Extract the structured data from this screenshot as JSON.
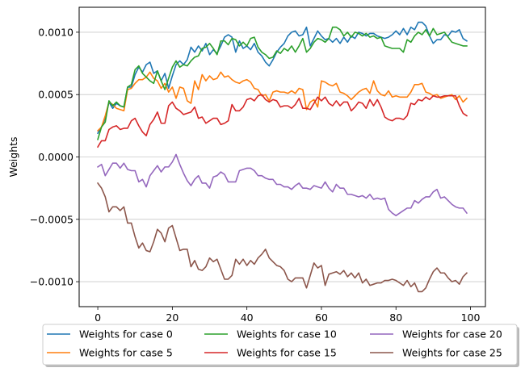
{
  "chart_data": {
    "type": "line",
    "title": "",
    "xlabel": "",
    "ylabel": "Weights",
    "xlim": [
      -5,
      104
    ],
    "ylim": [
      -0.0012,
      0.0012
    ],
    "xticks": [
      0,
      20,
      40,
      60,
      80,
      100
    ],
    "xtick_labels": [
      "0",
      "20",
      "40",
      "60",
      "80",
      "100"
    ],
    "yticks": [
      -0.001,
      -0.0005,
      0.0,
      0.0005,
      0.001
    ],
    "ytick_labels": [
      "−0.0010",
      "−0.0005",
      "0.0000",
      "0.0005",
      "0.0010"
    ],
    "grid": "horizontal",
    "legend_position": "bottom-center",
    "x": [
      0,
      1,
      2,
      3,
      4,
      5,
      6,
      7,
      8,
      9,
      10,
      11,
      12,
      13,
      14,
      15,
      16,
      17,
      18,
      19,
      20,
      21,
      22,
      23,
      24,
      25,
      26,
      27,
      28,
      29,
      30,
      31,
      32,
      33,
      34,
      35,
      36,
      37,
      38,
      39,
      40,
      41,
      42,
      43,
      44,
      45,
      46,
      47,
      48,
      49,
      50,
      51,
      52,
      53,
      54,
      55,
      56,
      57,
      58,
      59,
      60,
      61,
      62,
      63,
      64,
      65,
      66,
      67,
      68,
      69,
      70,
      71,
      72,
      73,
      74,
      75,
      76,
      77,
      78,
      79,
      80,
      81,
      82,
      83,
      84,
      85,
      86,
      87,
      88,
      89,
      90,
      91,
      92,
      93,
      94,
      95,
      96,
      97,
      98,
      99
    ],
    "series": [
      {
        "name": "Weights for case 0",
        "color": "#1f77b4",
        "values": [
          0.00019,
          0.00024,
          0.00031,
          0.00044,
          0.00039,
          0.00043,
          0.00041,
          0.0004,
          0.00056,
          0.00056,
          0.00066,
          0.00072,
          0.00068,
          0.00074,
          0.00076,
          0.00067,
          0.00069,
          0.00061,
          0.00067,
          0.00055,
          0.00065,
          0.00074,
          0.00077,
          0.00074,
          0.00078,
          0.00088,
          0.00084,
          0.00089,
          0.00085,
          0.00091,
          0.00082,
          0.00086,
          0.00083,
          0.00089,
          0.00096,
          0.00098,
          0.00096,
          0.00084,
          0.00093,
          0.00087,
          0.00089,
          0.00086,
          0.00091,
          0.00084,
          0.00081,
          0.00076,
          0.00073,
          0.00078,
          0.00084,
          0.00088,
          0.00091,
          0.00097,
          0.001,
          0.00101,
          0.00097,
          0.00098,
          0.00104,
          0.00089,
          0.00095,
          0.00101,
          0.00097,
          0.00094,
          0.00095,
          0.00092,
          0.00095,
          0.00091,
          0.00096,
          0.00092,
          0.00097,
          0.00095,
          0.001,
          0.00099,
          0.00097,
          0.00099,
          0.00099,
          0.00097,
          0.00096,
          0.00095,
          0.00096,
          0.00098,
          0.00101,
          0.00098,
          0.00103,
          0.00098,
          0.00104,
          0.00102,
          0.00108,
          0.00108,
          0.00105,
          0.00097,
          0.00091,
          0.00094,
          0.00094,
          0.00098,
          0.00097,
          0.00101,
          0.001,
          0.00102,
          0.00095,
          0.00093
        ]
      },
      {
        "name": "Weights for case 5",
        "color": "#ff7f0e",
        "values": [
          0.00021,
          0.00024,
          0.00033,
          0.00044,
          0.00042,
          0.00039,
          0.00038,
          0.00037,
          0.00054,
          0.00055,
          0.00059,
          0.00062,
          0.00062,
          0.00064,
          0.00068,
          0.00063,
          0.00061,
          0.00055,
          0.00059,
          0.00052,
          0.00056,
          0.00047,
          0.00056,
          0.00055,
          0.00045,
          0.00043,
          0.00061,
          0.00054,
          0.00066,
          0.00061,
          0.00065,
          0.00062,
          0.00063,
          0.00068,
          0.00064,
          0.00065,
          0.00062,
          0.0006,
          0.00059,
          0.00061,
          0.00062,
          0.0006,
          0.00055,
          0.00054,
          0.00049,
          0.0005,
          0.00045,
          0.00052,
          0.00053,
          0.00052,
          0.00052,
          0.00051,
          0.00053,
          0.00051,
          0.00055,
          0.00054,
          0.00038,
          0.00044,
          0.00046,
          0.0004,
          0.00061,
          0.0006,
          0.00058,
          0.00057,
          0.00059,
          0.00052,
          0.00051,
          0.00049,
          0.00046,
          0.00049,
          0.00052,
          0.00054,
          0.00055,
          0.00051,
          0.00061,
          0.00053,
          0.0005,
          0.00049,
          0.00053,
          0.00048,
          0.00049,
          0.00048,
          0.00048,
          0.00048,
          0.00052,
          0.00058,
          0.00058,
          0.00059,
          0.00052,
          0.00051,
          0.00049,
          0.0005,
          0.00047,
          0.00048,
          0.00049,
          0.0005,
          0.00046,
          0.00049,
          0.00044,
          0.00047
        ]
      },
      {
        "name": "Weights for case 10",
        "color": "#2ca02c",
        "values": [
          0.00014,
          0.00024,
          0.00028,
          0.00045,
          0.00041,
          0.00044,
          0.00041,
          0.0004,
          0.00056,
          0.00058,
          0.0007,
          0.00073,
          0.00067,
          0.00064,
          0.00061,
          0.00059,
          0.00069,
          0.00061,
          0.00054,
          0.00063,
          0.00072,
          0.00077,
          0.00072,
          0.00074,
          0.00073,
          0.00077,
          0.0008,
          0.00081,
          0.00087,
          0.00088,
          0.00091,
          0.00087,
          0.00082,
          0.00093,
          0.00093,
          0.0009,
          0.00095,
          0.00094,
          0.00089,
          0.00092,
          0.00089,
          0.00095,
          0.00096,
          0.00088,
          0.00084,
          0.00082,
          0.00079,
          0.0008,
          0.00085,
          0.00083,
          0.00087,
          0.00085,
          0.00089,
          0.00084,
          0.00089,
          0.00095,
          0.00084,
          0.00087,
          0.00092,
          0.00095,
          0.00094,
          0.00092,
          0.00095,
          0.00104,
          0.00104,
          0.00102,
          0.00097,
          0.001,
          0.00096,
          0.001,
          0.00099,
          0.00097,
          0.00099,
          0.00096,
          0.00097,
          0.00095,
          0.00096,
          0.00089,
          0.00088,
          0.00087,
          0.00087,
          0.00087,
          0.00084,
          0.00094,
          0.00092,
          0.00097,
          0.001,
          0.00098,
          0.00102,
          0.00097,
          0.00103,
          0.00098,
          0.00099,
          0.001,
          0.00096,
          0.00092,
          0.00091,
          0.0009,
          0.00089,
          0.00089
        ]
      },
      {
        "name": "Weights for case 15",
        "color": "#d62728",
        "values": [
          8e-05,
          0.00013,
          0.00013,
          0.00022,
          0.00024,
          0.00025,
          0.00022,
          0.00023,
          0.00023,
          0.00029,
          0.00031,
          0.00025,
          0.0002,
          0.00017,
          0.00026,
          0.0003,
          0.00036,
          0.00027,
          0.00027,
          0.00041,
          0.00044,
          0.00039,
          0.00037,
          0.00034,
          0.00035,
          0.00036,
          0.0004,
          0.00031,
          0.00032,
          0.00027,
          0.00029,
          0.00031,
          0.00031,
          0.00026,
          0.00027,
          0.00029,
          0.00042,
          0.00037,
          0.00037,
          0.0004,
          0.00046,
          0.00047,
          0.00045,
          0.00049,
          0.0005,
          0.00046,
          0.00044,
          0.00046,
          0.00045,
          0.0004,
          0.00041,
          0.00041,
          0.00039,
          0.00042,
          0.00047,
          0.00039,
          0.00039,
          0.00038,
          0.00043,
          0.00048,
          0.00045,
          0.00048,
          0.00043,
          0.00041,
          0.00045,
          0.00041,
          0.00044,
          0.00044,
          0.00037,
          0.0004,
          0.00044,
          0.00043,
          0.00039,
          0.00046,
          0.00041,
          0.00046,
          0.0004,
          0.00032,
          0.0003,
          0.00029,
          0.00031,
          0.00031,
          0.0003,
          0.00033,
          0.00043,
          0.00042,
          0.00046,
          0.00045,
          0.00048,
          0.00046,
          0.00049,
          0.00048,
          0.00048,
          0.00049,
          0.00049,
          0.00049,
          0.00049,
          0.00041,
          0.00035,
          0.00033
        ]
      },
      {
        "name": "Weights for case 20",
        "color": "#9467bd",
        "values": [
          -8e-05,
          -6e-05,
          -0.00015,
          -0.0001,
          -5e-05,
          -5e-05,
          -9e-05,
          -5e-05,
          -0.0001,
          -0.00011,
          -0.00011,
          -0.0002,
          -0.00018,
          -0.00024,
          -0.00015,
          -0.00011,
          -7e-05,
          -0.00012,
          -8e-05,
          -8e-05,
          -4e-05,
          2e-05,
          -6e-05,
          -0.00013,
          -0.00019,
          -0.00023,
          -0.00018,
          -0.00015,
          -0.00021,
          -0.00021,
          -0.00025,
          -0.00016,
          -0.00015,
          -0.00012,
          -0.00014,
          -0.0002,
          -0.0002,
          -0.0002,
          -0.00011,
          -0.0001,
          -9e-05,
          -9e-05,
          -0.00011,
          -0.00015,
          -0.00015,
          -0.00017,
          -0.00018,
          -0.00018,
          -0.00022,
          -0.00022,
          -0.00024,
          -0.00024,
          -0.00026,
          -0.00023,
          -0.00021,
          -0.00025,
          -0.00025,
          -0.00026,
          -0.00023,
          -0.00024,
          -0.00025,
          -0.0002,
          -0.00025,
          -0.00028,
          -0.00022,
          -0.00025,
          -0.00025,
          -0.0003,
          -0.0003,
          -0.00031,
          -0.00032,
          -0.00031,
          -0.00033,
          -0.0003,
          -0.00034,
          -0.00033,
          -0.00034,
          -0.00033,
          -0.00042,
          -0.00045,
          -0.00047,
          -0.00045,
          -0.00043,
          -0.00041,
          -0.00041,
          -0.00035,
          -0.00037,
          -0.00034,
          -0.00032,
          -0.00032,
          -0.00028,
          -0.00026,
          -0.00033,
          -0.00032,
          -0.00035,
          -0.00038,
          -0.0004,
          -0.00041,
          -0.00041,
          -0.00045
        ]
      },
      {
        "name": "Weights for case 25",
        "color": "#8c564b",
        "values": [
          -0.00021,
          -0.00025,
          -0.00032,
          -0.00044,
          -0.0004,
          -0.0004,
          -0.00043,
          -0.0004,
          -0.00053,
          -0.00053,
          -0.00064,
          -0.00073,
          -0.00069,
          -0.00075,
          -0.00076,
          -0.00068,
          -0.00058,
          -0.00061,
          -0.00068,
          -0.00057,
          -0.00055,
          -0.00065,
          -0.00075,
          -0.00074,
          -0.00074,
          -0.00088,
          -0.00083,
          -0.0009,
          -0.00091,
          -0.00088,
          -0.00081,
          -0.00084,
          -0.00082,
          -0.0009,
          -0.00098,
          -0.00098,
          -0.00095,
          -0.00082,
          -0.00086,
          -0.00082,
          -0.00087,
          -0.00083,
          -0.00086,
          -0.00081,
          -0.00078,
          -0.00074,
          -0.00081,
          -0.00084,
          -0.00087,
          -0.00088,
          -0.00091,
          -0.00098,
          -0.001,
          -0.00097,
          -0.00097,
          -0.00097,
          -0.00105,
          -0.00095,
          -0.00085,
          -0.00089,
          -0.00087,
          -0.00103,
          -0.00094,
          -0.00093,
          -0.00092,
          -0.00094,
          -0.00091,
          -0.00096,
          -0.00093,
          -0.00097,
          -0.00093,
          -0.00101,
          -0.00098,
          -0.00103,
          -0.00102,
          -0.00101,
          -0.00101,
          -0.00099,
          -0.00099,
          -0.00098,
          -0.00099,
          -0.00101,
          -0.00103,
          -0.00099,
          -0.00104,
          -0.00101,
          -0.00108,
          -0.00108,
          -0.00105,
          -0.00098,
          -0.00092,
          -0.00089,
          -0.00093,
          -0.00093,
          -0.00097,
          -0.001,
          -0.00099,
          -0.00102,
          -0.00096,
          -0.00093
        ]
      }
    ]
  }
}
